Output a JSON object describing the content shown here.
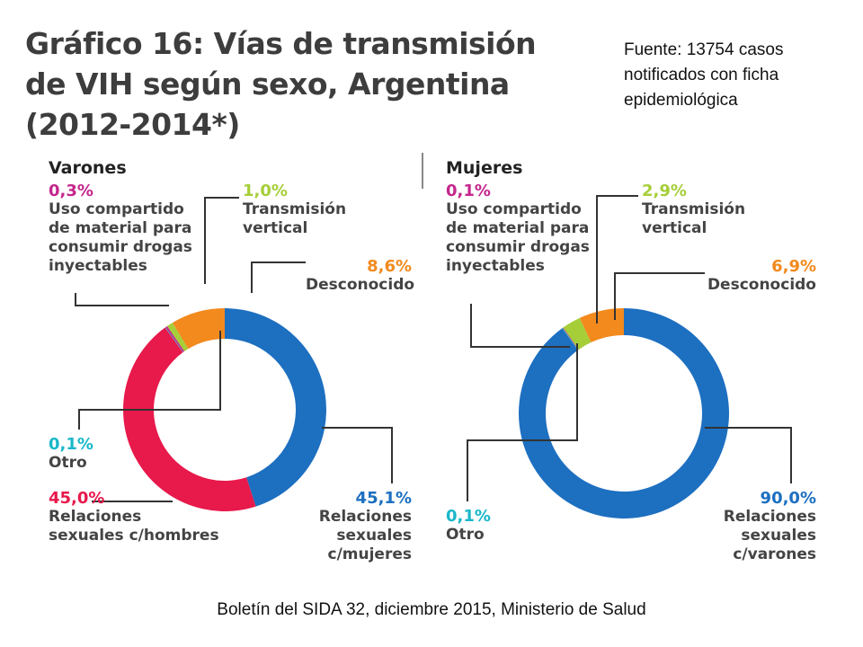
{
  "title": "Gráfico 16: Vías de transmisión de VIH según sexo, Argentina (2012-2014*)",
  "source_note": "Fuente: 13754 casos notificados con ficha epidemiológica",
  "footer": "Boletín del SIDA 32, diciembre 2015, Ministerio de Salud",
  "colors": {
    "blue": "#1d6fc0",
    "red": "#e8194b",
    "orange": "#f28a1e",
    "green": "#a6ce39",
    "teal": "#1ab7c9",
    "magenta": "#c4268c",
    "leader": "#333333"
  },
  "chart_data": [
    {
      "type": "pie",
      "title": "Varones",
      "slices": [
        {
          "label": "Relaciones sexuales c/mujeres",
          "value": 45.1,
          "pct": "45,1%",
          "color": "#1d6fc0"
        },
        {
          "label": "Relaciones sexuales c/hombres",
          "value": 45.0,
          "pct": "45,0%",
          "color": "#e8194b"
        },
        {
          "label": "Otro",
          "value": 0.1,
          "pct": "0,1%",
          "color": "#1ab7c9"
        },
        {
          "label": "Uso compartido de material para consumir drogas inyectables",
          "value": 0.3,
          "pct": "0,3%",
          "color": "#c4268c"
        },
        {
          "label": "Transmisión vertical",
          "value": 1.0,
          "pct": "1,0%",
          "color": "#a6ce39"
        },
        {
          "label": "Desconocido",
          "value": 8.6,
          "pct": "8,6%",
          "color": "#f28a1e"
        }
      ]
    },
    {
      "type": "pie",
      "title": "Mujeres",
      "slices": [
        {
          "label": "Relaciones sexuales c/varones",
          "value": 90.0,
          "pct": "90,0%",
          "color": "#1d6fc0"
        },
        {
          "label": "Otro",
          "value": 0.1,
          "pct": "0,1%",
          "color": "#1ab7c9"
        },
        {
          "label": "Uso compartido de material para consumir drogas inyectables",
          "value": 0.1,
          "pct": "0,1%",
          "color": "#c4268c"
        },
        {
          "label": "Transmisión vertical",
          "value": 2.9,
          "pct": "2,9%",
          "color": "#a6ce39"
        },
        {
          "label": "Desconocido",
          "value": 6.9,
          "pct": "6,9%",
          "color": "#f28a1e"
        }
      ]
    }
  ]
}
